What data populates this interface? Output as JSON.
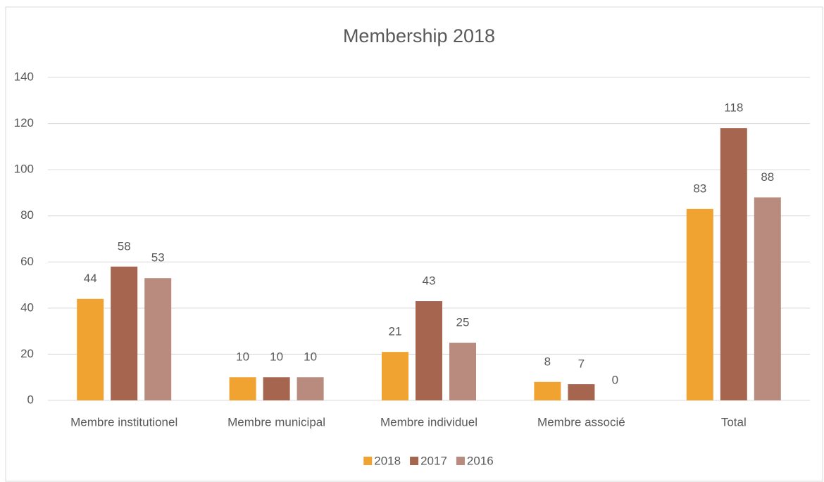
{
  "chart_data": {
    "type": "bar",
    "title": "Membership 2018",
    "categories": [
      "Membre institutionel",
      "Membre municipal",
      "Membre individuel",
      "Membre associé",
      "Total"
    ],
    "series": [
      {
        "name": "2018",
        "color": "#f0a330",
        "values": [
          44,
          10,
          21,
          8,
          83
        ]
      },
      {
        "name": "2017",
        "color": "#a5654e",
        "values": [
          58,
          10,
          43,
          7,
          118
        ]
      },
      {
        "name": "2016",
        "color": "#b88b7e",
        "values": [
          53,
          10,
          25,
          0,
          88
        ]
      }
    ],
    "ylim": [
      0,
      140
    ],
    "yticks": [
      0,
      20,
      40,
      60,
      80,
      100,
      120,
      140
    ],
    "grid": true,
    "legend": "bottom"
  }
}
